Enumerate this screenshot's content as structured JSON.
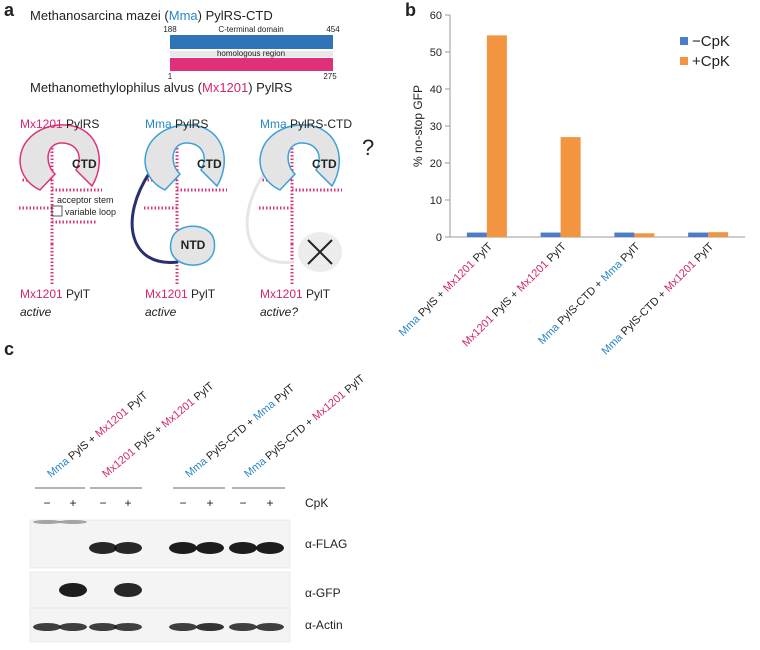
{
  "panel_a": {
    "letter": "a",
    "top_protein": [
      {
        "text": "Methanosarcina mazei ("
      },
      {
        "text": "Mma",
        "color": "#2a86c8"
      },
      {
        "text": ") PylRS-CTD"
      }
    ],
    "ctd_start": 188,
    "ctd_end": 454,
    "ctd_label": "C-terminal domain",
    "homology_label": "homologous region",
    "bottom_start": 1,
    "bottom_end": 275,
    "bottom_protein": [
      {
        "text": "Methanomethylophilus alvus ("
      },
      {
        "text": "Mx1201",
        "color": "#d6256e"
      },
      {
        "text": ") PylRS"
      }
    ],
    "schemes": [
      {
        "title": [
          {
            "text": "Mx1201",
            "color": "#d6256e"
          },
          {
            "text": " PylRS"
          }
        ],
        "domain": "CTD",
        "trna": [
          {
            "text": "Mx1201",
            "color": "#d6256e"
          },
          {
            "text": " PylT"
          }
        ],
        "status": "active"
      },
      {
        "title": [
          {
            "text": "Mma",
            "color": "#2a86c8"
          },
          {
            "text": " PylRS"
          }
        ],
        "domain": "CTD",
        "second_domain": "NTD",
        "trna": [
          {
            "text": "Mx1201",
            "color": "#d6256e"
          },
          {
            "text": " PylT"
          }
        ],
        "status": "active"
      },
      {
        "title": [
          {
            "text": "Mma",
            "color": "#2a86c8"
          },
          {
            "text": " PylRS-CTD"
          }
        ],
        "domain": "CTD",
        "trna": [
          {
            "text": "Mx1201",
            "color": "#d6256e"
          },
          {
            "text": " PylT"
          }
        ],
        "status": "active?"
      }
    ],
    "acceptor_label": "acceptor stem",
    "variable_label": "variable loop",
    "question": "?"
  },
  "chart_data": {
    "type": "bar",
    "letter": "b",
    "y_label": "% no-stop GFP",
    "categories": [
      [
        {
          "text": "Mma",
          "color": "#2a86c8"
        },
        {
          "text": " PylS + "
        },
        {
          "text": "Mx1201",
          "color": "#d6256e"
        },
        {
          "text": " PylT"
        }
      ],
      [
        {
          "text": "Mx1201",
          "color": "#d6256e"
        },
        {
          "text": " PylS + "
        },
        {
          "text": "Mx1201",
          "color": "#d6256e"
        },
        {
          "text": " PylT"
        }
      ],
      [
        {
          "text": "Mma",
          "color": "#2a86c8"
        },
        {
          "text": " PylS-CTD + "
        },
        {
          "text": "Mma",
          "color": "#2a86c8"
        },
        {
          "text": " PylT"
        }
      ],
      [
        {
          "text": "Mma",
          "color": "#2a86c8"
        },
        {
          "text": " PylS-CTD + "
        },
        {
          "text": "Mx1201",
          "color": "#d6256e"
        },
        {
          "text": " PylT"
        }
      ]
    ],
    "series": [
      {
        "name": "−CpK",
        "color": "#4a7cc9",
        "values": [
          1.2,
          1.2,
          1.2,
          1.2
        ]
      },
      {
        "name": "+CpK",
        "color": "#f39440",
        "values": [
          54.5,
          27,
          1.0,
          1.3
        ]
      }
    ],
    "ylim": [
      0,
      60
    ],
    "yticks": [
      0,
      10,
      20,
      30,
      40,
      50,
      60
    ],
    "legend": "top-right",
    "grid": false
  },
  "panel_c": {
    "letter": "c",
    "lane_groups": [
      [
        {
          "text": "Mma",
          "color": "#2a86c8"
        },
        {
          "text": " PylS + "
        },
        {
          "text": "Mx1201",
          "color": "#d6256e"
        },
        {
          "text": " PylT"
        }
      ],
      [
        {
          "text": "Mx1201",
          "color": "#d6256e"
        },
        {
          "text": " PylS + "
        },
        {
          "text": "Mx1201",
          "color": "#d6256e"
        },
        {
          "text": " PylT"
        }
      ],
      [
        {
          "text": "Mma",
          "color": "#2a86c8"
        },
        {
          "text": " PylS-CTD + "
        },
        {
          "text": "Mma",
          "color": "#2a86c8"
        },
        {
          "text": " PylT"
        }
      ],
      [
        {
          "text": "Mma",
          "color": "#2a86c8"
        },
        {
          "text": " PylS-CTD + "
        },
        {
          "text": "Mx1201",
          "color": "#d6256e"
        },
        {
          "text": " PylT"
        }
      ]
    ],
    "signs": [
      "−",
      "+",
      "−",
      "+",
      "−",
      "+",
      "−",
      "+"
    ],
    "condition": "CpK",
    "blots": [
      "α-FLAG",
      "α-GFP",
      "α-Actin"
    ]
  }
}
